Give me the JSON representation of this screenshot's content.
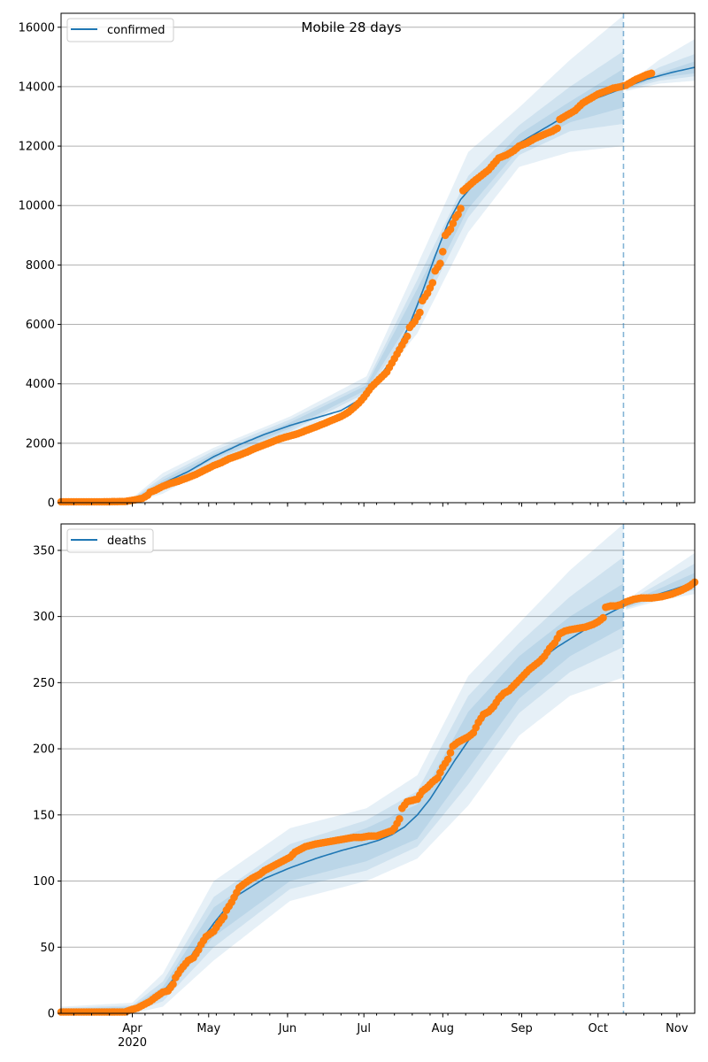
{
  "figure": {
    "title": "Mobile 28 days"
  },
  "x_axis": {
    "start_date": "2020-03-04",
    "end_date": "2020-11-08",
    "tick_labels": [
      {
        "date": "2020-04-01",
        "label": "Apr",
        "sublabel": "2020"
      },
      {
        "date": "2020-05-01",
        "label": "May",
        "sublabel": ""
      },
      {
        "date": "2020-06-01",
        "label": "Jun",
        "sublabel": ""
      },
      {
        "date": "2020-07-01",
        "label": "Jul",
        "sublabel": ""
      },
      {
        "date": "2020-08-01",
        "label": "Aug",
        "sublabel": ""
      },
      {
        "date": "2020-09-01",
        "label": "Sep",
        "sublabel": ""
      },
      {
        "date": "2020-10-01",
        "label": "Oct",
        "sublabel": ""
      },
      {
        "date": "2020-11-01",
        "label": "Nov",
        "sublabel": ""
      }
    ],
    "forecast_start_date": "2020-10-11"
  },
  "colors": {
    "median_line": "#1f77b4",
    "observed": "#ff7f0e",
    "band": "#1f77b4",
    "forecast_line": "#1f77b4",
    "grid": "#b0b0b0"
  },
  "chart_data": [
    {
      "type": "line",
      "name": "confirmed",
      "title": "Mobile 28 days",
      "legend": "confirmed",
      "legend_position": "top-left",
      "xlabel": "",
      "ylabel": "",
      "ylim": [
        0,
        16470
      ],
      "yticks": [
        0,
        2000,
        4000,
        6000,
        8000,
        10000,
        12000,
        14000,
        16000
      ],
      "grid": "y",
      "forecast_start_day": 221,
      "median": {
        "days": [
          0,
          20,
          28,
          34,
          40,
          50,
          60,
          70,
          80,
          90,
          100,
          110,
          117,
          122,
          130,
          137,
          142,
          147,
          152,
          157,
          165,
          172,
          180,
          190,
          200,
          210,
          221,
          230,
          240,
          249
        ],
        "values": [
          30,
          40,
          90,
          300,
          650,
          1050,
          1550,
          1950,
          2300,
          2600,
          2850,
          3100,
          3450,
          3900,
          4800,
          6000,
          7100,
          8300,
          9400,
          10200,
          11000,
          11600,
          12100,
          12600,
          13100,
          13600,
          13950,
          14250,
          14480,
          14650
        ]
      },
      "bands": {
        "days": [
          0,
          28,
          40,
          60,
          90,
          120,
          140,
          160,
          180,
          200,
          221,
          222,
          235,
          249
        ],
        "levels": [
          {
            "lower": [
              0,
              20,
              300,
              1250,
              2250,
              3550,
              5700,
              9100,
              11300,
              11800,
              12000,
              13850,
              14100,
              14200
            ],
            "upper": [
              60,
              160,
              1000,
              1850,
              2900,
              4250,
              8000,
              11800,
              13300,
              14900,
              16400,
              14050,
              14900,
              15600
            ]
          },
          {
            "lower": [
              10,
              40,
              420,
              1380,
              2400,
              3700,
              6200,
              9600,
              11700,
              12500,
              12750,
              13900,
              14200,
              14350
            ],
            "upper": [
              50,
              130,
              860,
              1750,
              2800,
              4050,
              7500,
              11000,
              12700,
              14000,
              15200,
              14000,
              14650,
              15100
            ]
          },
          {
            "lower": [
              20,
              60,
              520,
              1470,
              2500,
              3800,
              6500,
              9900,
              11900,
              12800,
              13300,
              13930,
              14300,
              14450
            ],
            "upper": [
              40,
              110,
              760,
              1650,
              2700,
              3950,
              7200,
              10600,
              12400,
              13500,
              14600,
              13980,
              14450,
              14850
            ]
          }
        ]
      },
      "observed": {
        "days": [
          0,
          5,
          10,
          15,
          20,
          25,
          28,
          30,
          32,
          34,
          35,
          37,
          40,
          43,
          46,
          50,
          53,
          56,
          60,
          63,
          66,
          70,
          73,
          76,
          80,
          83,
          86,
          90,
          93,
          96,
          100,
          103,
          106,
          110,
          113,
          115,
          117,
          119,
          122,
          125,
          128,
          130,
          132,
          134,
          136,
          137,
          139,
          141,
          142,
          144,
          146,
          147,
          149,
          150,
          151,
          153,
          155,
          156,
          157,
          158,
          160,
          162,
          165,
          168,
          170,
          172,
          175,
          178,
          180,
          183,
          186,
          190,
          193,
          195,
          196,
          199,
          202,
          205,
          208,
          211,
          214,
          217,
          220,
          222,
          224,
          226,
          228,
          230,
          232
        ],
        "values": [
          30,
          30,
          30,
          30,
          35,
          40,
          80,
          110,
          150,
          250,
          350,
          420,
          550,
          650,
          720,
          850,
          950,
          1080,
          1250,
          1350,
          1480,
          1600,
          1700,
          1820,
          1950,
          2050,
          2150,
          2250,
          2320,
          2420,
          2550,
          2650,
          2760,
          2900,
          3050,
          3200,
          3350,
          3550,
          3900,
          4150,
          4400,
          4700,
          5000,
          5300,
          5600,
          5900,
          6100,
          6400,
          6800,
          7050,
          7400,
          7800,
          8050,
          8450,
          9000,
          9200,
          9600,
          9700,
          9900,
          10500,
          10650,
          10800,
          11000,
          11200,
          11400,
          11600,
          11700,
          11850,
          12000,
          12100,
          12250,
          12400,
          12500,
          12600,
          12900,
          13050,
          13200,
          13450,
          13600,
          13750,
          13850,
          13950,
          14000,
          14050,
          14150,
          14250,
          14320,
          14400,
          14450
        ]
      }
    },
    {
      "type": "line",
      "name": "deaths",
      "title": "",
      "legend": "deaths",
      "legend_position": "top-left",
      "xlabel": "",
      "ylabel": "",
      "ylim": [
        0,
        370
      ],
      "yticks": [
        0,
        50,
        100,
        150,
        200,
        250,
        300,
        350
      ],
      "grid": "y",
      "forecast_start_day": 221,
      "median": {
        "days": [
          0,
          20,
          28,
          35,
          40,
          45,
          50,
          55,
          60,
          65,
          70,
          80,
          90,
          100,
          110,
          120,
          125,
          130,
          135,
          140,
          145,
          150,
          155,
          160,
          165,
          170,
          175,
          180,
          185,
          190,
          195,
          200,
          205,
          210,
          215,
          221,
          230,
          240,
          249
        ],
        "values": [
          1,
          1,
          3,
          8,
          16,
          28,
          40,
          55,
          68,
          80,
          90,
          102,
          110,
          117,
          123,
          128,
          131,
          135,
          141,
          150,
          162,
          177,
          192,
          206,
          220,
          233,
          244,
          254,
          263,
          270,
          277,
          283,
          289,
          297,
          302,
          308,
          314,
          320,
          326
        ]
      },
      "bands": {
        "days": [
          0,
          28,
          40,
          60,
          90,
          120,
          140,
          160,
          180,
          200,
          221,
          222,
          235,
          249
        ],
        "levels": [
          {
            "lower": [
              0,
              0,
              5,
              40,
              85,
              100,
              117,
              157,
              210,
              240,
              254,
              305,
              312,
              317
            ],
            "upper": [
              5,
              8,
              30,
              100,
              140,
              155,
              180,
              255,
              295,
              335,
              370,
              312,
              330,
              348
            ]
          },
          {
            "lower": [
              0,
              1,
              9,
              50,
              94,
              108,
              126,
              173,
              227,
              258,
              277,
              306,
              314,
              320
            ],
            "upper": [
              4,
              6,
              24,
              88,
              128,
              146,
              168,
              240,
              280,
              315,
              345,
              311,
              325,
              340
            ]
          },
          {
            "lower": [
              0,
              1,
              12,
              58,
              100,
              115,
              132,
              185,
              238,
              270,
              292,
              307,
              316,
              322
            ],
            "upper": [
              3,
              5,
              20,
              80,
              120,
              140,
              158,
              228,
              270,
              300,
              325,
              310,
              321,
              333
            ]
          }
        ]
      },
      "observed": {
        "days": [
          0,
          5,
          10,
          15,
          20,
          25,
          28,
          30,
          32,
          35,
          37,
          40,
          42,
          44,
          45,
          47,
          50,
          52,
          54,
          55,
          57,
          60,
          62,
          64,
          65,
          67,
          70,
          72,
          75,
          78,
          80,
          82,
          85,
          88,
          90,
          92,
          94,
          96,
          98,
          100,
          103,
          106,
          109,
          112,
          115,
          118,
          121,
          124,
          127,
          130,
          131,
          133,
          134,
          136,
          138,
          140,
          142,
          144,
          146,
          148,
          150,
          152,
          154,
          156,
          158,
          160,
          162,
          164,
          166,
          168,
          170,
          172,
          174,
          176,
          178,
          180,
          182,
          184,
          186,
          188,
          190,
          192,
          194,
          196,
          198,
          200,
          203,
          206,
          209,
          211,
          213,
          214,
          216,
          218,
          220,
          222,
          225,
          228,
          232,
          236,
          240,
          244,
          247,
          249
        ],
        "values": [
          1,
          1,
          1,
          1,
          1,
          1,
          3,
          4,
          6,
          9,
          12,
          16,
          17,
          22,
          27,
          33,
          40,
          42,
          48,
          52,
          58,
          62,
          68,
          73,
          78,
          84,
          95,
          98,
          102,
          105,
          108,
          110,
          113,
          116,
          118,
          122,
          124,
          126,
          127,
          128,
          129,
          130,
          131,
          132,
          133,
          133,
          134,
          134,
          136,
          138,
          140,
          147,
          155,
          160,
          161,
          162,
          168,
          171,
          175,
          178,
          186,
          192,
          202,
          205,
          207,
          209,
          212,
          220,
          226,
          228,
          232,
          238,
          242,
          244,
          248,
          252,
          256,
          260,
          263,
          266,
          270,
          276,
          280,
          287,
          289,
          290,
          291,
          292,
          294,
          296,
          299,
          307,
          308,
          308,
          309,
          311,
          313,
          314,
          314,
          315,
          317,
          320,
          323,
          326
        ]
      }
    }
  ]
}
